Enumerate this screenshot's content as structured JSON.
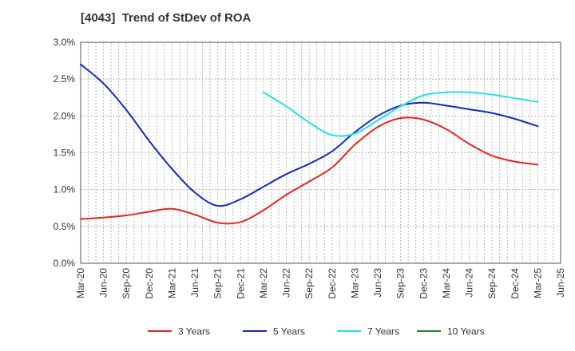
{
  "chart_data": {
    "type": "line",
    "title": "[4043]  Trend of StDev of ROA",
    "xlabel": "",
    "ylabel": "",
    "ylim": [
      0,
      3.0
    ],
    "y_ticks": [
      "0.0%",
      "0.5%",
      "1.0%",
      "1.5%",
      "2.0%",
      "2.5%",
      "3.0%"
    ],
    "x_ticks": [
      "Mar-20",
      "Jun-20",
      "Sep-20",
      "Dec-20",
      "Mar-21",
      "Jun-21",
      "Sep-21",
      "Dec-21",
      "Mar-22",
      "Jun-22",
      "Sep-22",
      "Dec-22",
      "Mar-23",
      "Jun-23",
      "Sep-23",
      "Dec-23",
      "Mar-24",
      "Jun-24",
      "Sep-24",
      "Dec-24",
      "Mar-25",
      "Jun-25"
    ],
    "grid": true,
    "legend_position": "bottom",
    "series": [
      {
        "name": "3 Years",
        "color": "#e8231e",
        "values": [
          0.6,
          0.62,
          0.65,
          0.7,
          0.74,
          0.66,
          0.55,
          0.56,
          0.72,
          0.93,
          1.11,
          1.3,
          1.61,
          1.85,
          1.97,
          1.95,
          1.82,
          1.62,
          1.46,
          1.38,
          1.34,
          null
        ]
      },
      {
        "name": "5 Years",
        "color": "#1428c8",
        "values": [
          2.7,
          2.44,
          2.08,
          1.66,
          1.28,
          0.96,
          0.78,
          0.87,
          1.04,
          1.21,
          1.35,
          1.52,
          1.78,
          2.0,
          2.14,
          2.18,
          2.14,
          2.09,
          2.04,
          1.96,
          1.86,
          null
        ]
      },
      {
        "name": "7 Years",
        "color": "#22e0ee",
        "values": [
          null,
          null,
          null,
          null,
          null,
          null,
          null,
          null,
          2.32,
          2.13,
          1.91,
          1.74,
          1.76,
          1.94,
          2.13,
          2.28,
          2.32,
          2.32,
          2.29,
          2.24,
          2.19,
          null
        ]
      },
      {
        "name": "10 Years",
        "color": "#1e8a1e",
        "values": [
          null,
          null,
          null,
          null,
          null,
          null,
          null,
          null,
          null,
          null,
          null,
          null,
          null,
          null,
          null,
          null,
          null,
          null,
          null,
          null,
          null,
          null
        ]
      }
    ]
  }
}
